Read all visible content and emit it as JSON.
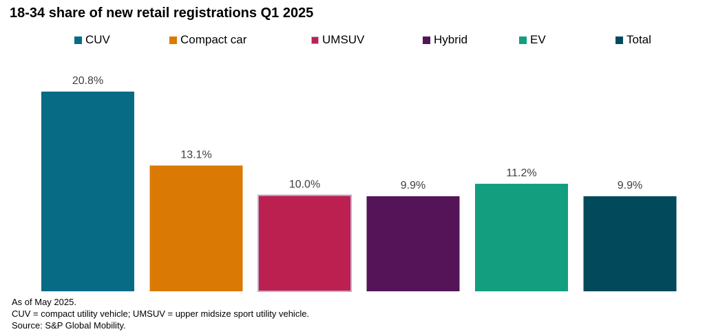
{
  "chart_data": {
    "type": "bar",
    "title": "18-34 share of new retail registrations Q1 2025",
    "categories": [
      "CUV",
      "Compact car",
      "UMSUV",
      "Hybrid",
      "EV",
      "Total"
    ],
    "values": [
      20.8,
      13.1,
      10.0,
      9.9,
      11.2,
      9.9
    ],
    "data_labels": [
      "20.8%",
      "13.1%",
      "10.0%",
      "9.9%",
      "11.2%",
      "9.9%"
    ],
    "colors": [
      "#086B85",
      "#DA7A05",
      "#BC2050",
      "#561458",
      "#129E7F",
      "#024A5B"
    ],
    "ylim": [
      0,
      20.8
    ],
    "grid": false,
    "legend_position": "top"
  },
  "notes": {
    "as_of": "As of May 2025.",
    "abbreviations": "CUV = compact utility vehicle; UMSUV = upper midsize sport utility vehicle.",
    "source": "Source: S&P Global Mobility."
  }
}
